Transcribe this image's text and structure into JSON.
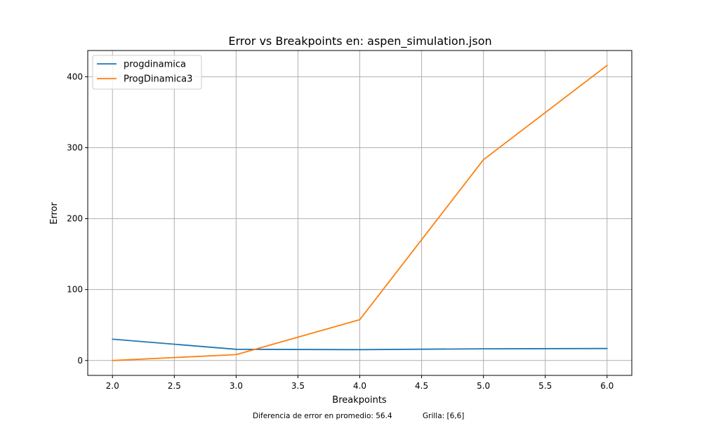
{
  "chart_data": {
    "type": "line",
    "title": "Error vs Breakpoints en: aspen_simulation.json",
    "xlabel": "Breakpoints",
    "ylabel": "Error",
    "xlim": [
      1.8,
      6.2
    ],
    "ylim": [
      -21,
      437
    ],
    "xticks": [
      2.0,
      2.5,
      3.0,
      3.5,
      4.0,
      4.5,
      5.0,
      5.5,
      6.0
    ],
    "xtick_labels": [
      "2.0",
      "2.5",
      "3.0",
      "3.5",
      "4.0",
      "4.5",
      "5.0",
      "5.5",
      "6.0"
    ],
    "yticks": [
      0,
      100,
      200,
      300,
      400
    ],
    "ytick_labels": [
      "0",
      "100",
      "200",
      "300",
      "400"
    ],
    "grid": true,
    "legend_position": "top-left",
    "x": [
      2,
      3,
      4,
      5,
      6
    ],
    "series": [
      {
        "name": "progdinamica",
        "color": "#1f77b4",
        "values": [
          30,
          15.8,
          15.3,
          16.5,
          16.9
        ]
      },
      {
        "name": "ProgDinamica3",
        "color": "#ff7f0e",
        "values": [
          0,
          8.3,
          57.5,
          283,
          416
        ]
      }
    ]
  },
  "footer": {
    "left": "Diferencia de error en promedio: 56.4",
    "right": "Grilla: [6,6]"
  }
}
